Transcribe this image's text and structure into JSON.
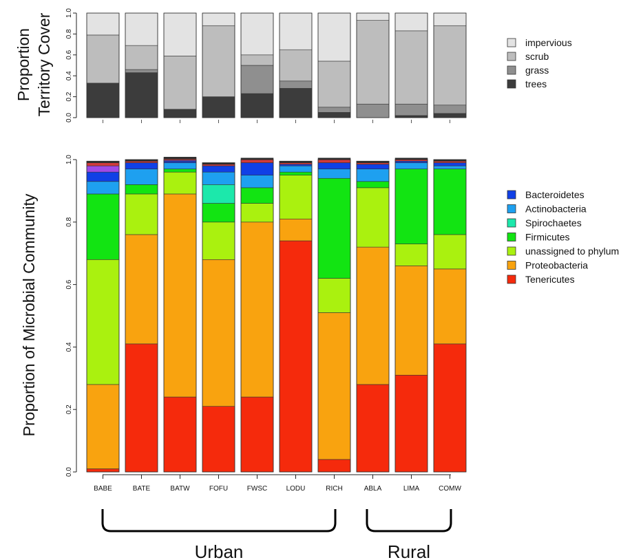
{
  "chart_data": [
    {
      "type": "bar",
      "stacked": true,
      "ylabel_line1": "Proportion",
      "ylabel_line2": "Territory Cover",
      "ylim": [
        0,
        1
      ],
      "yticks": [
        "0.0",
        "0.2",
        "0.4",
        "0.6",
        "0.8",
        "1.0"
      ],
      "categories": [
        "BABE",
        "BATE",
        "BATW",
        "FOFU",
        "FWSC",
        "LODU",
        "RICH",
        "ABLA",
        "LIMA",
        "COMW"
      ],
      "legend_position": "right",
      "series": [
        {
          "name": "trees",
          "color": "#3c3c3c",
          "values": [
            0.33,
            0.43,
            0.08,
            0.2,
            0.23,
            0.28,
            0.05,
            0.0,
            0.02,
            0.04
          ]
        },
        {
          "name": "grass",
          "color": "#8f8f8f",
          "values": [
            0.0,
            0.03,
            0.0,
            0.0,
            0.27,
            0.07,
            0.05,
            0.13,
            0.11,
            0.08
          ]
        },
        {
          "name": "scrub",
          "color": "#bdbdbd",
          "values": [
            0.46,
            0.23,
            0.51,
            0.68,
            0.1,
            0.3,
            0.44,
            0.8,
            0.7,
            0.76
          ]
        },
        {
          "name": "impervious",
          "color": "#e3e3e3",
          "values": [
            0.21,
            0.31,
            0.41,
            0.12,
            0.4,
            0.35,
            0.46,
            0.07,
            0.17,
            0.12
          ]
        }
      ]
    },
    {
      "type": "bar",
      "stacked": true,
      "ylabel": "Proportion of Microbial Community",
      "ylim": [
        0,
        1
      ],
      "yticks": [
        "0.0",
        "0.2",
        "0.4",
        "0.6",
        "0.8",
        "1.0"
      ],
      "categories": [
        "BABE",
        "BATE",
        "BATW",
        "FOFU",
        "FWSC",
        "LODU",
        "RICH",
        "ABLA",
        "LIMA",
        "COMW"
      ],
      "legend_position": "right",
      "series": [
        {
          "name": "Tenericutes",
          "color": "#f52a0c",
          "values": [
            0.01,
            0.41,
            0.24,
            0.21,
            0.24,
            0.74,
            0.04,
            0.28,
            0.31,
            0.41
          ]
        },
        {
          "name": "Proteobacteria",
          "color": "#f9a30f",
          "values": [
            0.27,
            0.35,
            0.65,
            0.47,
            0.56,
            0.07,
            0.47,
            0.44,
            0.35,
            0.24
          ]
        },
        {
          "name": "unassigned to phylum",
          "color": "#aaf10f",
          "values": [
            0.4,
            0.13,
            0.07,
            0.12,
            0.06,
            0.14,
            0.11,
            0.19,
            0.07,
            0.11
          ]
        },
        {
          "name": "Firmicutes",
          "color": "#12e412",
          "values": [
            0.21,
            0.03,
            0.01,
            0.06,
            0.05,
            0.01,
            0.32,
            0.02,
            0.24,
            0.21
          ]
        },
        {
          "name": "Spirochaetes",
          "color": "#1ce8ab",
          "values": [
            0.0,
            0.0,
            0.0,
            0.06,
            0.0,
            0.0,
            0.0,
            0.0,
            0.0,
            0.0
          ]
        },
        {
          "name": "Actinobacteria",
          "color": "#1ea0f0",
          "values": [
            0.04,
            0.05,
            0.02,
            0.04,
            0.04,
            0.02,
            0.03,
            0.04,
            0.02,
            0.01
          ]
        },
        {
          "name": "Bacteroidetes",
          "color": "#1040e6",
          "values": [
            0.03,
            0.02,
            0.005,
            0.02,
            0.04,
            0.005,
            0.02,
            0.015,
            0.005,
            0.01
          ]
        },
        {
          "name": "",
          "color": "#a04ae6",
          "values": [
            0.02,
            0.0,
            0.003,
            0.0,
            0.0,
            0.0,
            0.0,
            0.0,
            0.0,
            0.0
          ]
        },
        {
          "name": "",
          "color": "#d23a3a",
          "values": [
            0.01,
            0.005,
            0.005,
            0.005,
            0.01,
            0.005,
            0.01,
            0.005,
            0.005,
            0.005
          ]
        },
        {
          "name": "",
          "color": "#2a2a2a",
          "values": [
            0.005,
            0.005,
            0.005,
            0.005,
            0.005,
            0.005,
            0.005,
            0.005,
            0.005,
            0.005
          ]
        }
      ]
    }
  ],
  "groups": {
    "urban": {
      "label": "Urban"
    },
    "rural": {
      "label": "Rural"
    }
  }
}
